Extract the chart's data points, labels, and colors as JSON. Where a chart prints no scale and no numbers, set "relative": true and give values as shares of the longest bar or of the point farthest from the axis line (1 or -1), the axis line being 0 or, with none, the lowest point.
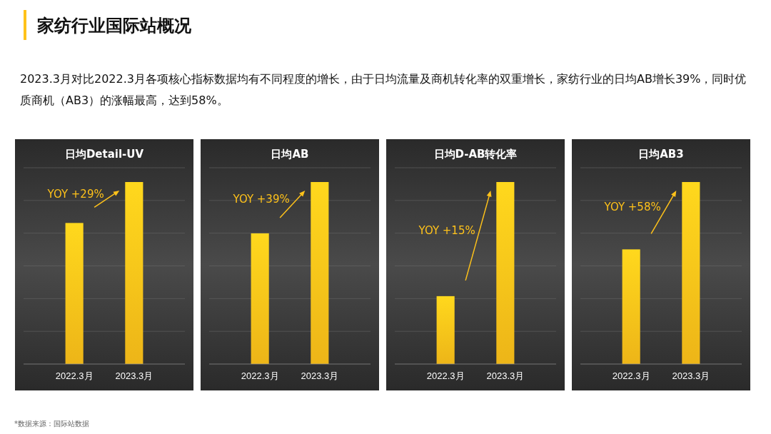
{
  "chart_data": [
    {
      "type": "other",
      "title": "家纺行业国际站概况",
      "subtitle": "2023.3月对比2022.3月各项核心指标数据均有不同程度的增长，由于日均流量及商机转化率的双重增长，家纺行业的日均AB增长39%，同时优质商机（AB3）的涨幅最高，达到58%。",
      "annotations": [
        "*数据来源：国际站数据"
      ]
    },
    {
      "type": "bar",
      "title": "日均Detail-UV",
      "categories": [
        "2022.3月",
        "2023.3月"
      ],
      "values": [
        0.775,
        1
      ],
      "relative": true,
      "color": "#ffc21a",
      "grid": true,
      "annotations": [
        "YOY +29%"
      ]
    },
    {
      "type": "bar",
      "title": "日均AB",
      "categories": [
        "2022.3月",
        "2023.3月"
      ],
      "values": [
        0.718,
        1
      ],
      "relative": true,
      "color": "#ffc21a",
      "grid": true,
      "annotations": [
        "YOY +39%"
      ]
    },
    {
      "type": "bar",
      "title": "日均D-AB转化率",
      "categories": [
        "2022.3月",
        "2023.3月"
      ],
      "values": [
        0.373,
        1
      ],
      "relative": true,
      "color": "#ffc21a",
      "grid": true,
      "annotations": [
        "YOY +15%"
      ]
    },
    {
      "type": "bar",
      "title": "日均AB3",
      "categories": [
        "2022.3月",
        "2023.3月"
      ],
      "values": [
        0.63,
        1
      ],
      "relative": true,
      "color": "#ffc21a",
      "grid": true,
      "annotations": [
        "YOY +58%"
      ]
    }
  ]
}
